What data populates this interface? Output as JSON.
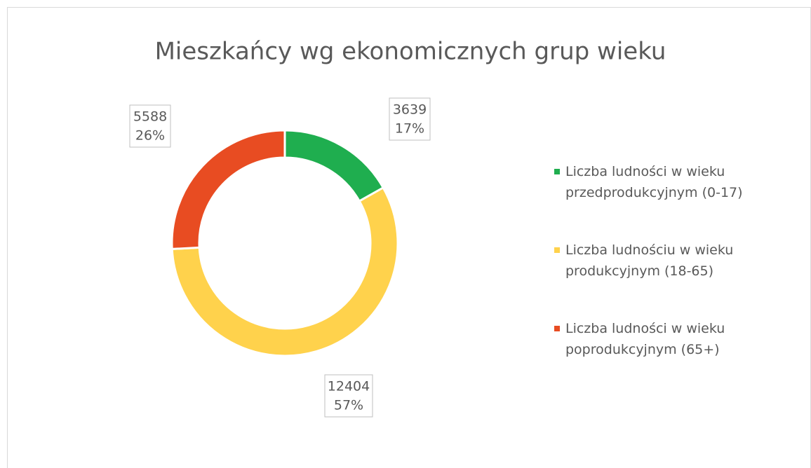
{
  "chart_data": {
    "type": "donut",
    "title": "Mieszkańcy wg ekonomicznych grup wieku",
    "categories": [
      "Liczba ludności w wieku przedprodukcyjnym (0-17)",
      "Liczba ludnościu w wieku produkcyjnym (18-65)",
      "Liczba ludności w wieku poprodukcyjnym (65+)"
    ],
    "values": [
      3639,
      12404,
      5588
    ],
    "percent_labels": [
      "17%",
      "57%",
      "26%"
    ],
    "colors": [
      "#1fae4f",
      "#ffd24c",
      "#e84c22"
    ],
    "legend": "right"
  }
}
